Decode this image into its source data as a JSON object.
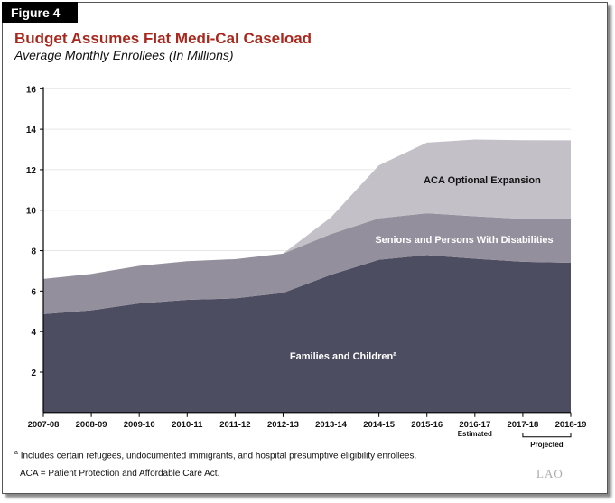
{
  "figure_label": "Figure 4",
  "chart_data": {
    "type": "area",
    "stacked": true,
    "title": "Budget Assumes Flat Medi-Cal Caseload",
    "subtitle": "Average Monthly Enrollees (In Millions)",
    "categories": [
      "2007-08",
      "2008-09",
      "2009-10",
      "2010-11",
      "2011-12",
      "2012-13",
      "2013-14",
      "2014-15",
      "2015-16",
      "2016-17",
      "2017-18",
      "2018-19"
    ],
    "series": [
      {
        "name": "Families and Children",
        "superscript": "a",
        "color": "#4d4d61",
        "label_color": "#ffffff",
        "values": [
          4.86,
          5.05,
          5.39,
          5.57,
          5.64,
          5.91,
          6.81,
          7.55,
          7.78,
          7.6,
          7.45,
          7.4
        ]
      },
      {
        "name": "Seniors and Persons With Disabilities",
        "color": "#948f9c",
        "label_color": "#ffffff",
        "values": [
          1.74,
          1.8,
          1.86,
          1.91,
          1.94,
          1.94,
          2.01,
          2.05,
          2.07,
          2.1,
          2.12,
          2.17
        ]
      },
      {
        "name": "ACA Optional Expansion",
        "color": "#c3c0c8",
        "label_color": "#111111",
        "values": [
          0,
          0,
          0,
          0,
          0,
          0,
          0.83,
          2.62,
          3.49,
          3.79,
          3.89,
          3.88
        ]
      }
    ],
    "ylim": [
      0,
      16
    ],
    "yticks": [
      2,
      4,
      6,
      8,
      10,
      12,
      14,
      16
    ],
    "grid": true,
    "xlabel": "",
    "ylabel": "",
    "annotations": {
      "estimated": "Estimated",
      "projected": "Projected"
    }
  },
  "footnotes": {
    "a_marker": "a",
    "a_text": "Includes certain refugees, undocumented immigrants, and hospital presumptive eligibility enrollees.",
    "aca": "ACA = Patient Protection and Affordable Care Act."
  },
  "logo_text": "LAO"
}
